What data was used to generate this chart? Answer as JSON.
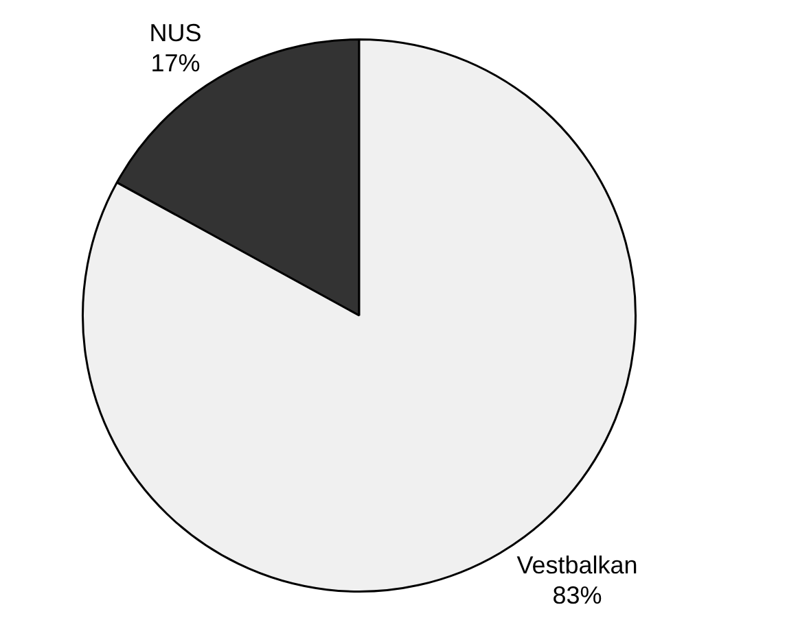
{
  "chart_data": {
    "type": "pie",
    "categories": [
      "NUS",
      "Vestbalkan"
    ],
    "values": [
      17,
      83
    ],
    "colors": [
      "#333333",
      "#f0f0f0"
    ],
    "value_labels": [
      "17%",
      "83%"
    ],
    "legend": false
  }
}
